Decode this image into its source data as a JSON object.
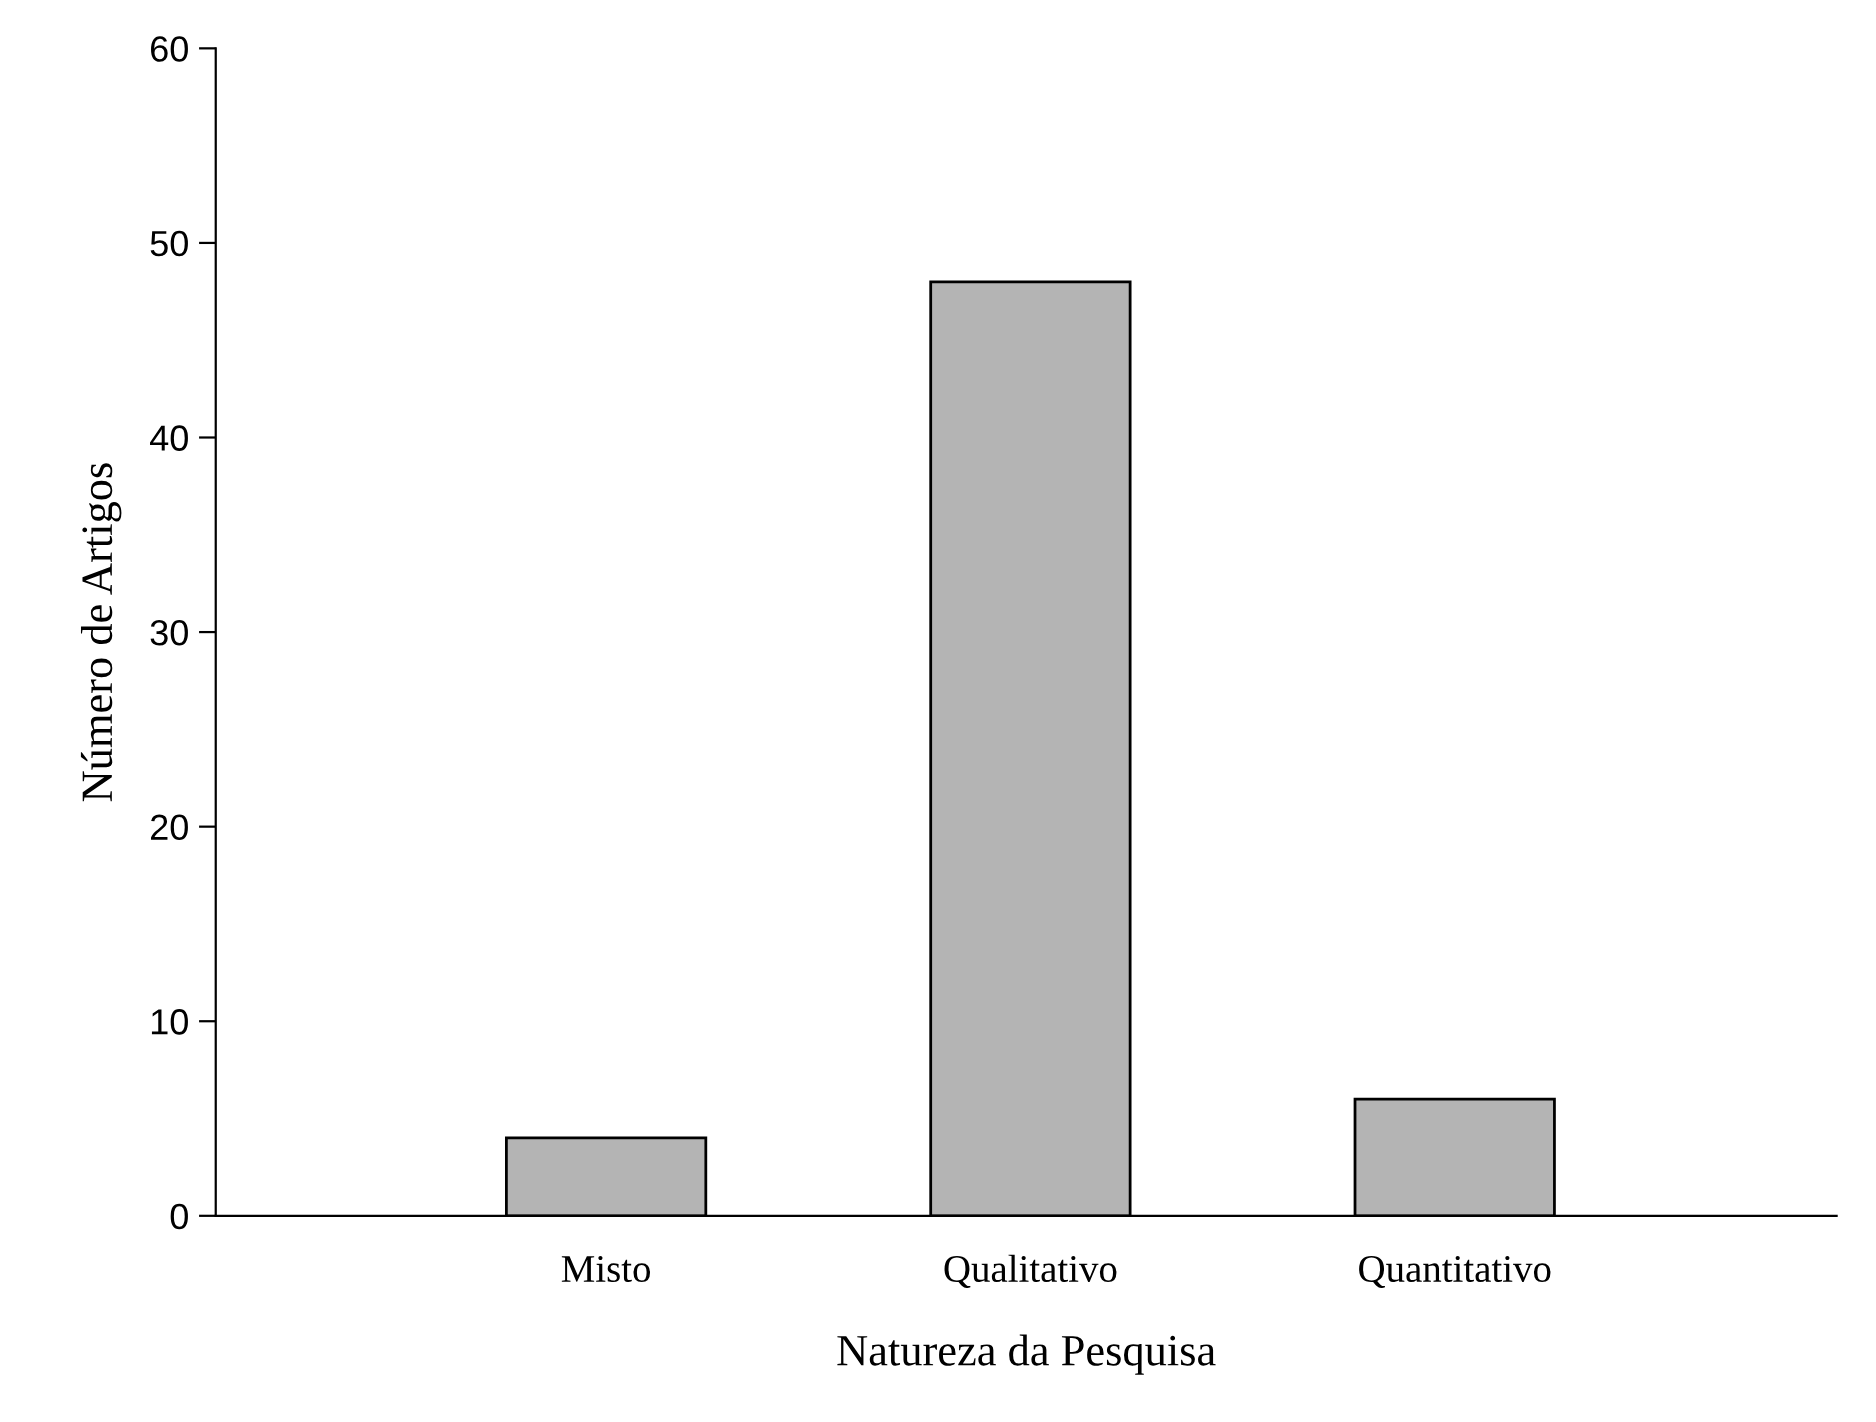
{
  "chart_data": {
    "type": "bar",
    "xlabel": "Natureza da Pesquisa",
    "ylabel": "Número de Artigos",
    "categories": [
      "Misto",
      "Qualitativo",
      "Quantitativo"
    ],
    "values": [
      4,
      48,
      6
    ],
    "color": "#b4b4b4",
    "ylim": [
      0,
      60
    ],
    "yticks": [
      0,
      10,
      20,
      30,
      40,
      50,
      60
    ],
    "grid": false
  }
}
